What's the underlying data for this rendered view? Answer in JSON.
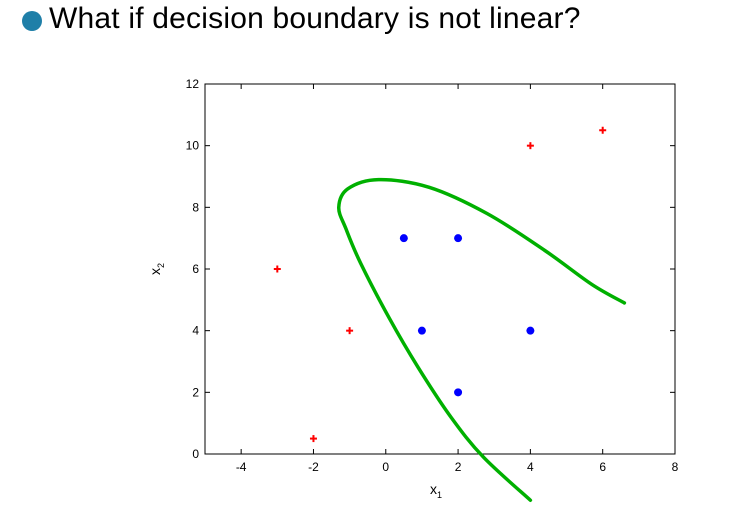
{
  "slide": {
    "title": "What if decision boundary is not linear?",
    "bullet_color": "#1f7fa8"
  },
  "chart_data": {
    "type": "scatter",
    "title": "",
    "xlabel": "x",
    "xlabel_sub": "1",
    "ylabel": "x",
    "ylabel_sub": "2",
    "xlim": [
      -5,
      8
    ],
    "ylim": [
      0,
      12
    ],
    "xticks": [
      -4,
      -2,
      0,
      2,
      4,
      6,
      8
    ],
    "yticks": [
      0,
      2,
      4,
      6,
      8,
      10,
      12
    ],
    "grid": false,
    "legend": "none",
    "series": [
      {
        "marker": "plus",
        "color": "#ff0000",
        "points": [
          {
            "x": -3,
            "y": 6
          },
          {
            "x": -1,
            "y": 4
          },
          {
            "x": -2,
            "y": 0.5
          },
          {
            "x": 4,
            "y": 10
          },
          {
            "x": 6,
            "y": 10.5
          }
        ]
      },
      {
        "marker": "dot",
        "color": "#0000ff",
        "points": [
          {
            "x": 0.5,
            "y": 7
          },
          {
            "x": 2,
            "y": 7
          },
          {
            "x": 1,
            "y": 4
          },
          {
            "x": 4,
            "y": 4
          },
          {
            "x": 2,
            "y": 2
          }
        ]
      }
    ],
    "decision_boundary": {
      "color": "#00b000",
      "points": [
        {
          "x": 4,
          "y": -1.5
        },
        {
          "x": 2.7,
          "y": -0.1
        },
        {
          "x": 1.8,
          "y": 1.2
        },
        {
          "x": 0.9,
          "y": 2.8
        },
        {
          "x": 0.1,
          "y": 4.4
        },
        {
          "x": -0.7,
          "y": 6.2
        },
        {
          "x": -1.1,
          "y": 7.3
        },
        {
          "x": -1.3,
          "y": 8.0
        },
        {
          "x": -1.05,
          "y": 8.6
        },
        {
          "x": -0.2,
          "y": 8.9
        },
        {
          "x": 1.2,
          "y": 8.65
        },
        {
          "x": 2.8,
          "y": 7.8
        },
        {
          "x": 4.4,
          "y": 6.6
        },
        {
          "x": 5.7,
          "y": 5.5
        },
        {
          "x": 6.6,
          "y": 4.9
        }
      ]
    }
  }
}
